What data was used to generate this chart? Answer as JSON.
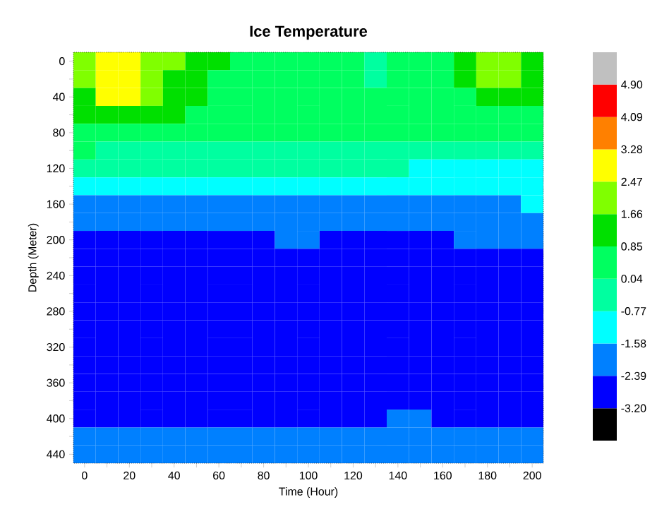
{
  "chart_data": {
    "type": "heatmap",
    "title": "Ice Temperature",
    "xlabel": "Time (Hour)",
    "ylabel": "Depth (Meter)",
    "categories": [
      "0",
      null,
      "20",
      null,
      "40",
      null,
      "60",
      null,
      "80",
      null,
      "100",
      null,
      "120",
      null,
      "140",
      null,
      "160",
      null,
      "180",
      null,
      "200"
    ],
    "y_categories": [
      "0",
      null,
      "40",
      null,
      "80",
      null,
      "120",
      null,
      "160",
      null,
      "200",
      null,
      "240",
      null,
      "280",
      null,
      "320",
      null,
      "360",
      null,
      "400",
      null,
      "440"
    ],
    "cells": [
      [
        2.0,
        2.9,
        2.9,
        2.0,
        2.0,
        1.2,
        1.2,
        0.4,
        0.4,
        0.4,
        0.4,
        0.4,
        0.4,
        -0.4,
        0.4,
        0.4,
        0.4,
        1.2,
        2.0,
        2.0,
        1.2
      ],
      [
        2.0,
        2.9,
        2.9,
        2.0,
        1.2,
        1.2,
        0.4,
        0.4,
        0.4,
        0.4,
        0.4,
        0.4,
        0.4,
        -0.4,
        0.4,
        0.4,
        0.4,
        1.2,
        2.0,
        2.0,
        1.2
      ],
      [
        1.2,
        2.9,
        2.9,
        2.0,
        1.2,
        1.2,
        0.4,
        0.4,
        0.4,
        0.4,
        0.4,
        0.4,
        0.4,
        0.4,
        0.4,
        0.4,
        0.4,
        0.4,
        1.2,
        1.2,
        1.2
      ],
      [
        1.2,
        1.2,
        1.2,
        1.2,
        1.2,
        0.4,
        0.4,
        0.4,
        0.4,
        0.4,
        0.4,
        0.4,
        0.4,
        0.4,
        0.4,
        0.4,
        0.4,
        0.4,
        0.4,
        0.4,
        0.4
      ],
      [
        0.4,
        0.4,
        0.4,
        0.4,
        0.4,
        0.4,
        0.4,
        0.4,
        0.4,
        0.4,
        0.4,
        0.4,
        0.4,
        0.4,
        0.4,
        0.4,
        0.4,
        0.4,
        0.4,
        0.4,
        0.4
      ],
      [
        0.4,
        -0.4,
        -0.4,
        -0.4,
        -0.4,
        -0.4,
        -0.4,
        -0.4,
        -0.4,
        -0.4,
        -0.4,
        -0.4,
        -0.4,
        -0.4,
        -0.4,
        -0.4,
        -0.4,
        -0.4,
        -0.4,
        -0.4,
        -0.4
      ],
      [
        -0.4,
        -0.4,
        -0.4,
        -0.4,
        -0.4,
        -0.4,
        -0.4,
        -0.4,
        -0.4,
        -0.4,
        -0.4,
        -0.4,
        -0.4,
        -0.4,
        -0.4,
        -1.2,
        -1.2,
        -1.2,
        -1.2,
        -1.2,
        -1.2
      ],
      [
        -1.2,
        -1.2,
        -1.2,
        -1.2,
        -1.2,
        -1.2,
        -1.2,
        -1.2,
        -1.2,
        -1.2,
        -1.2,
        -1.2,
        -1.2,
        -1.2,
        -1.2,
        -1.2,
        -1.2,
        -1.2,
        -1.2,
        -1.2,
        -1.2
      ],
      [
        -2.0,
        -2.0,
        -2.0,
        -2.0,
        -2.0,
        -2.0,
        -2.0,
        -2.0,
        -2.0,
        -2.0,
        -2.0,
        -2.0,
        -2.0,
        -2.0,
        -2.0,
        -2.0,
        -2.0,
        -2.0,
        -2.0,
        -2.0,
        -1.2
      ],
      [
        -2.0,
        -2.0,
        -2.0,
        -2.0,
        -2.0,
        -2.0,
        -2.0,
        -2.0,
        -2.0,
        -2.0,
        -2.0,
        -2.0,
        -2.0,
        -2.0,
        -2.0,
        -2.0,
        -2.0,
        -2.0,
        -2.0,
        -2.0,
        -2.0
      ],
      [
        -2.8,
        -2.8,
        -2.8,
        -2.8,
        -2.8,
        -2.8,
        -2.8,
        -2.8,
        -2.8,
        -2.0,
        -2.0,
        -2.8,
        -2.8,
        -2.8,
        -2.8,
        -2.8,
        -2.8,
        -2.0,
        -2.0,
        -2.0,
        -2.0
      ],
      [
        -2.8,
        -2.8,
        -2.8,
        -2.8,
        -2.8,
        -2.8,
        -2.8,
        -2.8,
        -2.8,
        -2.8,
        -2.8,
        -2.8,
        -2.8,
        -2.8,
        -2.8,
        -2.8,
        -2.8,
        -2.8,
        -2.8,
        -2.8,
        -2.8
      ],
      [
        -2.8,
        -2.8,
        -2.8,
        -2.8,
        -2.8,
        -2.8,
        -2.8,
        -2.8,
        -2.8,
        -2.8,
        -2.8,
        -2.8,
        -2.8,
        -2.8,
        -2.8,
        -2.8,
        -2.8,
        -2.8,
        -2.8,
        -2.8,
        -2.8
      ],
      [
        -2.8,
        -2.8,
        -2.8,
        -2.8,
        -2.8,
        -2.8,
        -2.8,
        -2.8,
        -2.8,
        -2.8,
        -2.8,
        -2.8,
        -2.8,
        -2.8,
        -2.8,
        -2.8,
        -2.8,
        -2.8,
        -2.8,
        -2.8,
        -2.8
      ],
      [
        -2.8,
        -2.8,
        -2.8,
        -2.8,
        -2.8,
        -2.8,
        -2.8,
        -2.8,
        -2.8,
        -2.8,
        -2.8,
        -2.8,
        -2.8,
        -2.8,
        -2.8,
        -2.8,
        -2.8,
        -2.8,
        -2.8,
        -2.8,
        -2.8
      ],
      [
        -2.8,
        -2.8,
        -2.8,
        -2.8,
        -2.8,
        -2.8,
        -2.8,
        -2.8,
        -2.8,
        -2.8,
        -2.8,
        -2.8,
        -2.8,
        -2.8,
        -2.8,
        -2.8,
        -2.8,
        -2.8,
        -2.8,
        -2.8,
        -2.8
      ],
      [
        -2.8,
        -2.8,
        -2.8,
        -2.8,
        -2.8,
        -2.8,
        -2.8,
        -2.8,
        -2.8,
        -2.8,
        -2.8,
        -2.8,
        -2.8,
        -2.8,
        -2.8,
        -2.8,
        -2.8,
        -2.8,
        -2.8,
        -2.8,
        -2.8
      ],
      [
        -2.8,
        -2.8,
        -2.8,
        -2.8,
        -2.8,
        -2.8,
        -2.8,
        -2.8,
        -2.8,
        -2.8,
        -2.8,
        -2.8,
        -2.8,
        -2.8,
        -2.8,
        -2.8,
        -2.8,
        -2.8,
        -2.8,
        -2.8,
        -2.8
      ],
      [
        -2.8,
        -2.8,
        -2.8,
        -2.8,
        -2.8,
        -2.8,
        -2.8,
        -2.8,
        -2.8,
        -2.8,
        -2.8,
        -2.8,
        -2.8,
        -2.8,
        -2.8,
        -2.8,
        -2.8,
        -2.8,
        -2.8,
        -2.8,
        -2.8
      ],
      [
        -2.8,
        -2.8,
        -2.8,
        -2.8,
        -2.8,
        -2.8,
        -2.8,
        -2.8,
        -2.8,
        -2.8,
        -2.8,
        -2.8,
        -2.8,
        -2.8,
        -2.8,
        -2.8,
        -2.8,
        -2.8,
        -2.8,
        -2.8,
        -2.8
      ],
      [
        -2.8,
        -2.8,
        -2.8,
        -2.8,
        -2.8,
        -2.8,
        -2.8,
        -2.8,
        -2.8,
        -2.8,
        -2.8,
        -2.8,
        -2.8,
        -2.8,
        -2.0,
        -2.0,
        -2.8,
        -2.8,
        -2.8,
        -2.8,
        -2.8
      ],
      [
        -2.0,
        -2.0,
        -2.0,
        -2.0,
        -2.0,
        -2.0,
        -2.0,
        -2.0,
        -2.0,
        -2.0,
        -2.0,
        -2.0,
        -2.0,
        -2.0,
        -2.0,
        -2.0,
        -2.0,
        -2.0,
        -2.0,
        -2.0,
        -2.0
      ],
      [
        -2.0,
        -2.0,
        -2.0,
        -2.0,
        -2.0,
        -2.0,
        -2.0,
        -2.0,
        -2.0,
        -2.0,
        -2.0,
        -2.0,
        -2.0,
        -2.0,
        -2.0,
        -2.0,
        -2.0,
        -2.0,
        -2.0,
        -2.0,
        -2.0
      ]
    ],
    "clim": [
      -4.01,
      5.71
    ],
    "cticks": [
      {
        "value": -3.2,
        "label": "-3.20"
      },
      -2.39,
      -1.58,
      -0.77,
      0.04,
      0.85,
      1.66,
      2.47,
      3.28,
      4.09,
      {
        "value": 4.9,
        "label": "4.90"
      }
    ]
  }
}
